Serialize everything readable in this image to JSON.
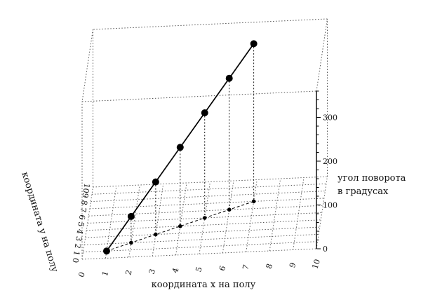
{
  "chart_data": {
    "type": "scatter",
    "projection": "3d",
    "x_axis": {
      "label": "координата x на полу",
      "range": [
        0,
        10
      ],
      "ticks": [
        "0",
        "1",
        "2",
        "3",
        "4",
        "5",
        "6",
        "7",
        "8",
        "9",
        "10"
      ]
    },
    "y_axis": {
      "label": "координата y на полу",
      "range": [
        0,
        10
      ],
      "ticks": [
        "0",
        "1",
        "2",
        "3",
        "4",
        "5",
        "6",
        "7",
        "8",
        "9",
        "10"
      ]
    },
    "z_axis": {
      "label_lines": [
        "угол поворота",
        "в градусах"
      ],
      "range": [
        0,
        360
      ],
      "ticks": [
        "0",
        "100",
        "200",
        "300"
      ]
    },
    "points": [
      {
        "x": 1.0,
        "y": 1.0,
        "z": 0
      },
      {
        "x": 2.0,
        "y": 2.0,
        "z": 60
      },
      {
        "x": 3.0,
        "y": 3.0,
        "z": 120
      },
      {
        "x": 4.0,
        "y": 4.0,
        "z": 180
      },
      {
        "x": 5.0,
        "y": 5.0,
        "z": 240
      },
      {
        "x": 6.0,
        "y": 6.0,
        "z": 300
      },
      {
        "x": 7.0,
        "y": 7.0,
        "z": 360
      }
    ],
    "colors": {
      "line": "#000000",
      "grid": "#555555",
      "box": "#555555"
    }
  }
}
